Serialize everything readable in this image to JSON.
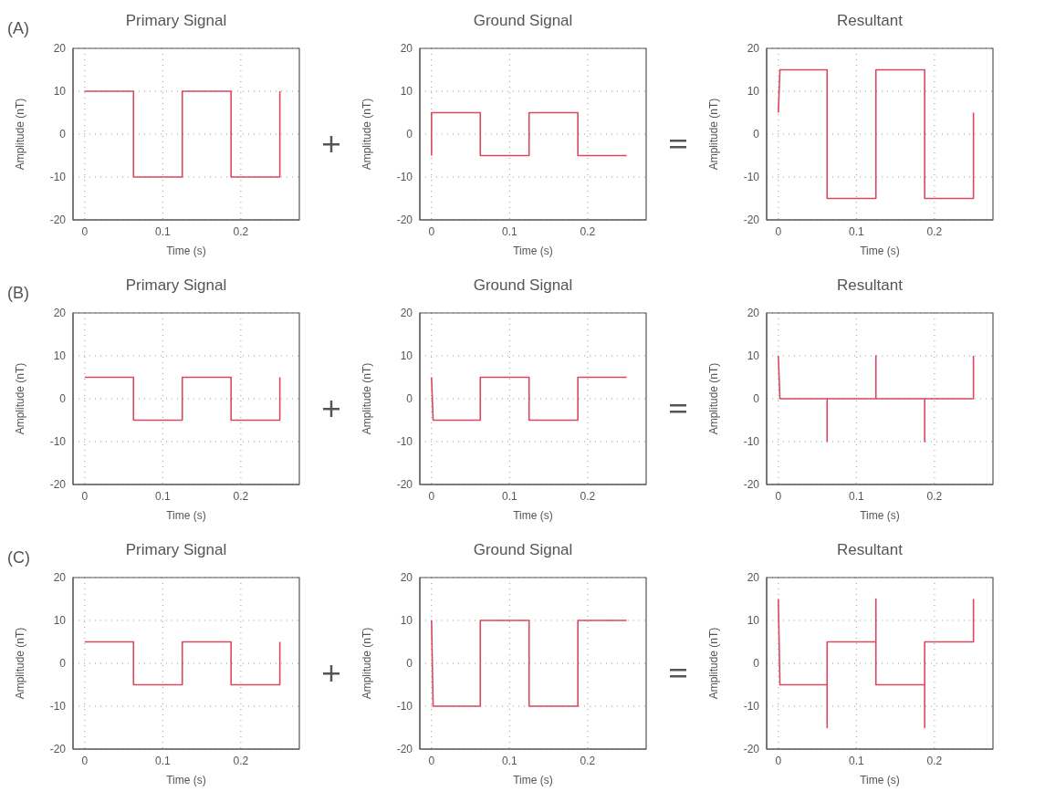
{
  "chart_data": [
    {
      "type": "line",
      "title": "Primary Signal",
      "xlabel": "Time (s)",
      "ylabel": "Amplitude (nT)",
      "annotations": [
        "(A)"
      ],
      "xlim": [
        -0.015,
        0.275
      ],
      "ylim": [
        -20,
        20
      ],
      "xticks": [
        0,
        0.1,
        0.2
      ],
      "yticks": [
        -20,
        -10,
        0,
        10,
        20
      ],
      "grid": true,
      "marker": "none",
      "line_style": "solid",
      "series": [
        {
          "color": "#d9485f",
          "x": [
            0,
            0.0625,
            0.0625,
            0.125,
            0.125,
            0.1875,
            0.1875,
            0.25,
            0.25
          ],
          "values": [
            10,
            10,
            -10,
            -10,
            10,
            10,
            -10,
            -10,
            10
          ]
        }
      ]
    },
    {
      "type": "line",
      "title": "Ground Signal",
      "xlabel": "Time (s)",
      "ylabel": "Amplitude (nT)",
      "xlim": [
        -0.015,
        0.275
      ],
      "ylim": [
        -20,
        20
      ],
      "xticks": [
        0,
        0.1,
        0.2
      ],
      "yticks": [
        -20,
        -10,
        0,
        10,
        20
      ],
      "grid": true,
      "marker": "none",
      "line_style": "solid",
      "series": [
        {
          "color": "#d9485f",
          "x": [
            0,
            0,
            0.0625,
            0.0625,
            0.125,
            0.125,
            0.1875,
            0.1875,
            0.25
          ],
          "values": [
            -5,
            5,
            5,
            -5,
            -5,
            5,
            5,
            -5,
            -5
          ]
        }
      ]
    },
    {
      "type": "line",
      "title": "Resultant",
      "xlabel": "Time (s)",
      "ylabel": "Amplitude (nT)",
      "xlim": [
        -0.015,
        0.275
      ],
      "ylim": [
        -20,
        20
      ],
      "xticks": [
        0,
        0.1,
        0.2
      ],
      "yticks": [
        -20,
        -10,
        0,
        10,
        20
      ],
      "grid": true,
      "marker": "none",
      "line_style": "solid",
      "series": [
        {
          "color": "#d9485f",
          "x": [
            0,
            0.002,
            0.0625,
            0.0625,
            0.125,
            0.125,
            0.1875,
            0.1875,
            0.25,
            0.25
          ],
          "values": [
            5,
            15,
            15,
            -15,
            -15,
            15,
            15,
            -15,
            -15,
            5
          ]
        }
      ]
    },
    {
      "type": "line",
      "title": "Primary Signal",
      "xlabel": "Time (s)",
      "ylabel": "Amplitude (nT)",
      "annotations": [
        "(B)"
      ],
      "xlim": [
        -0.015,
        0.275
      ],
      "ylim": [
        -20,
        20
      ],
      "xticks": [
        0,
        0.1,
        0.2
      ],
      "yticks": [
        -20,
        -10,
        0,
        10,
        20
      ],
      "grid": true,
      "marker": "none",
      "line_style": "solid",
      "series": [
        {
          "color": "#d9485f",
          "x": [
            0,
            0.0625,
            0.0625,
            0.125,
            0.125,
            0.1875,
            0.1875,
            0.25,
            0.25
          ],
          "values": [
            5,
            5,
            -5,
            -5,
            5,
            5,
            -5,
            -5,
            5
          ]
        }
      ]
    },
    {
      "type": "line",
      "title": "Ground Signal",
      "xlabel": "Time (s)",
      "ylabel": "Amplitude (nT)",
      "xlim": [
        -0.015,
        0.275
      ],
      "ylim": [
        -20,
        20
      ],
      "xticks": [
        0,
        0.1,
        0.2
      ],
      "yticks": [
        -20,
        -10,
        0,
        10,
        20
      ],
      "grid": true,
      "marker": "none",
      "line_style": "solid",
      "series": [
        {
          "color": "#d9485f",
          "x": [
            0,
            0.002,
            0.0625,
            0.0625,
            0.125,
            0.125,
            0.1875,
            0.1875,
            0.25
          ],
          "values": [
            5,
            -5,
            -5,
            5,
            5,
            -5,
            -5,
            5,
            5
          ]
        }
      ]
    },
    {
      "type": "line",
      "title": "Resultant",
      "xlabel": "Time (s)",
      "ylabel": "Amplitude (nT)",
      "xlim": [
        -0.015,
        0.275
      ],
      "ylim": [
        -20,
        20
      ],
      "xticks": [
        0,
        0.1,
        0.2
      ],
      "yticks": [
        -20,
        -10,
        0,
        10,
        20
      ],
      "grid": true,
      "marker": "none",
      "line_style": "solid",
      "series": [
        {
          "color": "#d9485f",
          "x": [
            0,
            0.002,
            0.0625,
            0.0625,
            0.0625,
            0.125,
            0.125,
            0.125,
            0.1875,
            0.1875,
            0.1875,
            0.25,
            0.25
          ],
          "values": [
            10,
            0,
            0,
            -10,
            0,
            0,
            10,
            0,
            0,
            -10,
            0,
            0,
            10
          ]
        }
      ]
    },
    {
      "type": "line",
      "title": "Primary Signal",
      "xlabel": "Time (s)",
      "ylabel": "Amplitude (nT)",
      "annotations": [
        "(C)"
      ],
      "xlim": [
        -0.015,
        0.275
      ],
      "ylim": [
        -20,
        20
      ],
      "xticks": [
        0,
        0.1,
        0.2
      ],
      "yticks": [
        -20,
        -10,
        0,
        10,
        20
      ],
      "grid": true,
      "marker": "none",
      "line_style": "solid",
      "series": [
        {
          "color": "#d9485f",
          "x": [
            0,
            0.0625,
            0.0625,
            0.125,
            0.125,
            0.1875,
            0.1875,
            0.25,
            0.25
          ],
          "values": [
            5,
            5,
            -5,
            -5,
            5,
            5,
            -5,
            -5,
            5
          ]
        }
      ]
    },
    {
      "type": "line",
      "title": "Ground Signal",
      "xlabel": "Time (s)",
      "ylabel": "Amplitude (nT)",
      "xlim": [
        -0.015,
        0.275
      ],
      "ylim": [
        -20,
        20
      ],
      "xticks": [
        0,
        0.1,
        0.2
      ],
      "yticks": [
        -20,
        -10,
        0,
        10,
        20
      ],
      "grid": true,
      "marker": "none",
      "line_style": "solid",
      "series": [
        {
          "color": "#d9485f",
          "x": [
            0,
            0.002,
            0.0625,
            0.0625,
            0.125,
            0.125,
            0.1875,
            0.1875,
            0.25
          ],
          "values": [
            10,
            -10,
            -10,
            10,
            10,
            -10,
            -10,
            10,
            10
          ]
        }
      ]
    },
    {
      "type": "line",
      "title": "Resultant",
      "xlabel": "Time (s)",
      "ylabel": "Amplitude (nT)",
      "xlim": [
        -0.015,
        0.275
      ],
      "ylim": [
        -20,
        20
      ],
      "xticks": [
        0,
        0.1,
        0.2
      ],
      "yticks": [
        -20,
        -10,
        0,
        10,
        20
      ],
      "grid": true,
      "marker": "none",
      "line_style": "solid",
      "series": [
        {
          "color": "#d9485f",
          "x": [
            0,
            0.002,
            0.0625,
            0.0625,
            0.0625,
            0.125,
            0.125,
            0.125,
            0.1875,
            0.1875,
            0.1875,
            0.25,
            0.25
          ],
          "values": [
            15,
            -5,
            -5,
            -15,
            5,
            5,
            15,
            -5,
            -5,
            -15,
            5,
            5,
            15
          ]
        }
      ]
    }
  ]
}
